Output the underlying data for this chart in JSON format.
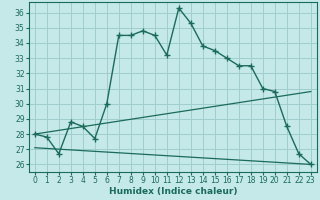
{
  "xlabel": "Humidex (Indice chaleur)",
  "background_color": "#c5e8e8",
  "line_color": "#1a6b5a",
  "grid_color": "#9fcece",
  "xlim": [
    -0.5,
    23.5
  ],
  "ylim": [
    25.5,
    36.7
  ],
  "yticks": [
    26,
    27,
    28,
    29,
    30,
    31,
    32,
    33,
    34,
    35,
    36
  ],
  "xticks": [
    0,
    1,
    2,
    3,
    4,
    5,
    6,
    7,
    8,
    9,
    10,
    11,
    12,
    13,
    14,
    15,
    16,
    17,
    18,
    19,
    20,
    21,
    22,
    23
  ],
  "curve_x": [
    0,
    1,
    2,
    3,
    4,
    5,
    6,
    7,
    8,
    9,
    10,
    11,
    12,
    13,
    14,
    15,
    16,
    17,
    18,
    19,
    20,
    21,
    22,
    23
  ],
  "curve_y": [
    28.0,
    27.8,
    26.7,
    28.8,
    28.5,
    27.7,
    30.0,
    34.5,
    34.5,
    34.8,
    34.5,
    33.2,
    36.3,
    35.3,
    33.8,
    33.5,
    33.0,
    32.5,
    32.5,
    31.0,
    30.8,
    28.5,
    26.7,
    26.0
  ],
  "trend1_x": [
    0,
    23
  ],
  "trend1_y": [
    28.0,
    30.8
  ],
  "trend2_x": [
    0,
    23
  ],
  "trend2_y": [
    27.1,
    26.0
  ]
}
